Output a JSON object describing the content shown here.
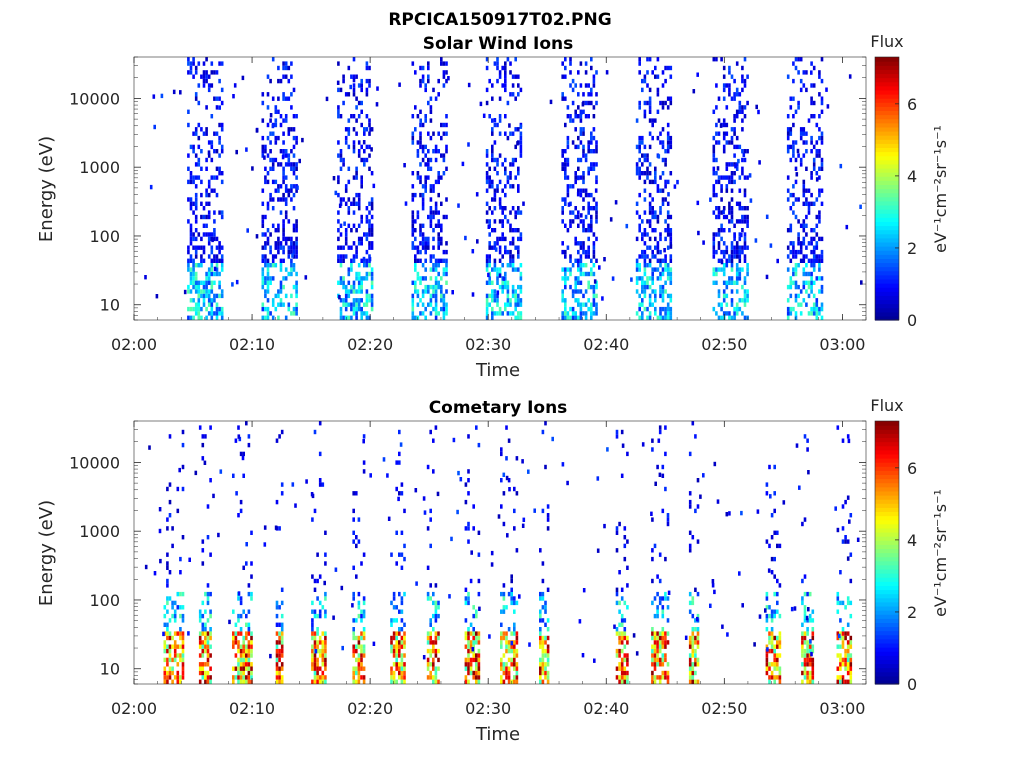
{
  "figure_title": "RPCICA150917T02.PNG",
  "colors": {
    "colormap": [
      "#00008f",
      "#0000ff",
      "#0080ff",
      "#00ffff",
      "#80ff80",
      "#ffff00",
      "#ff8000",
      "#ff0000",
      "#800000"
    ],
    "axis": "#262626",
    "background": "#ffffff"
  },
  "chart_data": [
    {
      "type": "heatmap",
      "title": "Solar Wind Ions",
      "xlabel": "Time",
      "ylabel": "Energy (eV)",
      "x_ticks": [
        "02:00",
        "02:10",
        "02:20",
        "02:30",
        "02:40",
        "02:50",
        "03:00"
      ],
      "x_range_min": [
        0,
        62
      ],
      "y_scale": "log",
      "y_ticks": [
        10,
        100,
        1000,
        10000
      ],
      "y_tick_labels": [
        "10",
        "100",
        "1000",
        "10000"
      ],
      "y_range": [
        6,
        40000
      ],
      "colorbar": {
        "title": "Flux",
        "label": "eV⁻¹cm⁻²sr⁻¹s⁻¹",
        "ticks": [
          0,
          2,
          4,
          6
        ],
        "range": [
          0,
          7.3
        ]
      },
      "bursts_min": [
        {
          "start": 4.5,
          "end": 7.5
        },
        {
          "start": 10.8,
          "end": 13.8
        },
        {
          "start": 17.2,
          "end": 20.2
        },
        {
          "start": 23.5,
          "end": 26.5
        },
        {
          "start": 29.8,
          "end": 32.8
        },
        {
          "start": 36.2,
          "end": 39.2
        },
        {
          "start": 42.5,
          "end": 45.5
        },
        {
          "start": 49.0,
          "end": 52.0
        },
        {
          "start": 55.3,
          "end": 58.3
        }
      ],
      "flux_range": [
        0,
        3.5
      ]
    },
    {
      "type": "heatmap",
      "title": "Cometary Ions",
      "xlabel": "Time",
      "ylabel": "Energy (eV)",
      "x_ticks": [
        "02:00",
        "02:10",
        "02:20",
        "02:30",
        "02:40",
        "02:50",
        "03:00"
      ],
      "x_range_min": [
        0,
        62
      ],
      "y_scale": "log",
      "y_ticks": [
        10,
        100,
        1000,
        10000
      ],
      "y_tick_labels": [
        "10",
        "100",
        "1000",
        "10000"
      ],
      "y_range": [
        6,
        40000
      ],
      "colorbar": {
        "title": "Flux",
        "label": "eV⁻¹cm⁻²sr⁻¹s⁻¹",
        "ticks": [
          0,
          2,
          4,
          6
        ],
        "range": [
          0,
          7.3
        ]
      },
      "bursts_min": [
        {
          "start": 2.5,
          "end": 4.2
        },
        {
          "start": 5.5,
          "end": 6.5
        },
        {
          "start": 8.3,
          "end": 10.0
        },
        {
          "start": 12.0,
          "end": 12.6
        },
        {
          "start": 15.0,
          "end": 16.3
        },
        {
          "start": 18.5,
          "end": 19.5
        },
        {
          "start": 21.7,
          "end": 22.8
        },
        {
          "start": 24.8,
          "end": 25.8
        },
        {
          "start": 28.0,
          "end": 29.2
        },
        {
          "start": 31.0,
          "end": 32.5
        },
        {
          "start": 34.3,
          "end": 35.0
        },
        {
          "start": 40.8,
          "end": 41.8
        },
        {
          "start": 43.8,
          "end": 45.3
        },
        {
          "start": 47.0,
          "end": 47.8
        },
        {
          "start": 53.5,
          "end": 54.7
        },
        {
          "start": 56.5,
          "end": 57.5
        },
        {
          "start": 59.5,
          "end": 60.8
        }
      ],
      "flux_range": [
        0,
        7.3
      ]
    }
  ]
}
